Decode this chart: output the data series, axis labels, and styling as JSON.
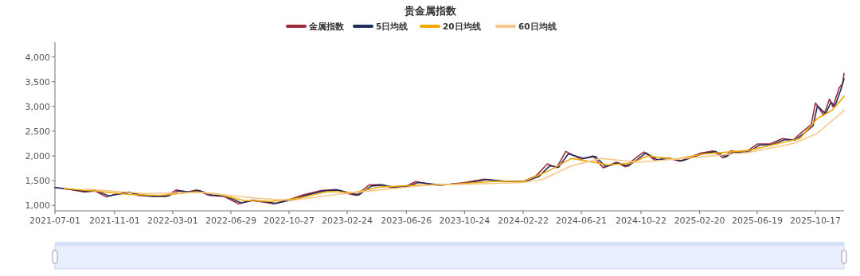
{
  "chart_data": {
    "type": "line",
    "title": "贵金属指数",
    "xlim": [
      "2021-07-01",
      "2025-12-15"
    ],
    "xticks": [
      "2021-07-01",
      "2021-11-01",
      "2022-03-01",
      "2022-06-29",
      "2022-10-27",
      "2023-02-24",
      "2023-06-26",
      "2023-10-24",
      "2024-02-22",
      "2024-06-21",
      "2024-10-22",
      "2025-02-20",
      "2025-06-19",
      "2025-10-17"
    ],
    "ylim": [
      890,
      4300
    ],
    "yticks": [
      {
        "value": 1000,
        "label": "1,000"
      },
      {
        "value": 1500,
        "label": "1,500"
      },
      {
        "value": 2000,
        "label": "2,000"
      },
      {
        "value": 2500,
        "label": "2,500"
      },
      {
        "value": 3000,
        "label": "3,000"
      },
      {
        "value": 3500,
        "label": "3,500"
      },
      {
        "value": 4000,
        "label": "4,000"
      }
    ],
    "grid": false,
    "legend": "top",
    "marker": "none",
    "line_style": "solid",
    "series": [
      {
        "name": "金属指数",
        "color": "#a0293a",
        "x": [
          "2021-07-01",
          "2021-08-01",
          "2021-09-01",
          "2021-09-20",
          "2021-10-15",
          "2021-11-01",
          "2021-12-01",
          "2021-12-20",
          "2022-01-20",
          "2022-02-15",
          "2022-03-08",
          "2022-04-01",
          "2022-04-20",
          "2022-05-15",
          "2022-06-15",
          "2022-07-15",
          "2022-08-10",
          "2022-09-01",
          "2022-09-25",
          "2022-11-01",
          "2022-11-25",
          "2023-01-01",
          "2023-02-01",
          "2023-02-24",
          "2023-03-15",
          "2023-04-10",
          "2023-05-05",
          "2023-05-25",
          "2023-06-26",
          "2023-07-15",
          "2023-09-01",
          "2023-10-24",
          "2023-12-04",
          "2024-01-10",
          "2024-02-22",
          "2024-03-20",
          "2024-04-12",
          "2024-05-01",
          "2024-05-20",
          "2024-06-21",
          "2024-07-15",
          "2024-08-05",
          "2024-09-01",
          "2024-09-20",
          "2024-10-10",
          "2024-10-28",
          "2024-11-20",
          "2024-12-15",
          "2025-01-10",
          "2025-02-20",
          "2025-03-20",
          "2025-04-10",
          "2025-04-25",
          "2025-05-25",
          "2025-06-19",
          "2025-07-15",
          "2025-08-10",
          "2025-09-01",
          "2025-09-20",
          "2025-10-08",
          "2025-10-17",
          "2025-11-03",
          "2025-11-15",
          "2025-11-22",
          "2025-12-05",
          "2025-12-12",
          "2025-12-15"
        ],
        "values": [
          1360,
          1320,
          1270,
          1300,
          1170,
          1220,
          1270,
          1200,
          1180,
          1180,
          1310,
          1270,
          1310,
          1200,
          1180,
          1030,
          1100,
          1070,
          1030,
          1130,
          1210,
          1300,
          1320,
          1240,
          1200,
          1410,
          1420,
          1360,
          1390,
          1480,
          1400,
          1460,
          1530,
          1490,
          1480,
          1600,
          1840,
          1760,
          2090,
          1930,
          2000,
          1760,
          1870,
          1780,
          1950,
          2080,
          1910,
          1960,
          1890,
          2050,
          2100,
          1960,
          2100,
          2070,
          2240,
          2240,
          2350,
          2320,
          2490,
          2630,
          3070,
          2820,
          3150,
          2990,
          3380,
          3460,
          3670
        ]
      },
      {
        "name": "5日均线",
        "color": "#1f2d5c",
        "x": [
          "2021-07-01",
          "2021-08-05",
          "2021-09-05",
          "2021-09-25",
          "2021-10-20",
          "2021-11-05",
          "2021-12-05",
          "2021-12-25",
          "2022-01-25",
          "2022-02-20",
          "2022-03-12",
          "2022-04-05",
          "2022-04-25",
          "2022-05-20",
          "2022-06-20",
          "2022-07-20",
          "2022-08-15",
          "2022-09-05",
          "2022-09-30",
          "2022-11-05",
          "2022-11-30",
          "2023-01-05",
          "2023-02-05",
          "2023-03-01",
          "2023-03-20",
          "2023-04-15",
          "2023-05-10",
          "2023-05-30",
          "2023-07-01",
          "2023-07-20",
          "2023-09-05",
          "2023-10-28",
          "2023-12-08",
          "2024-01-15",
          "2024-02-26",
          "2024-03-25",
          "2024-04-17",
          "2024-05-05",
          "2024-05-25",
          "2024-06-25",
          "2024-07-20",
          "2024-08-10",
          "2024-09-05",
          "2024-09-25",
          "2024-10-15",
          "2024-11-01",
          "2024-11-25",
          "2024-12-20",
          "2025-01-15",
          "2025-02-25",
          "2025-03-25",
          "2025-04-15",
          "2025-04-30",
          "2025-05-30",
          "2025-06-24",
          "2025-07-20",
          "2025-08-15",
          "2025-09-05",
          "2025-09-25",
          "2025-10-12",
          "2025-10-21",
          "2025-11-07",
          "2025-11-18",
          "2025-11-26",
          "2025-12-08",
          "2025-12-15"
        ],
        "values": [
          1360,
          1320,
          1280,
          1290,
          1190,
          1220,
          1260,
          1210,
          1180,
          1190,
          1290,
          1270,
          1300,
          1210,
          1180,
          1050,
          1100,
          1080,
          1040,
          1120,
          1200,
          1290,
          1310,
          1250,
          1210,
          1390,
          1410,
          1370,
          1390,
          1460,
          1410,
          1450,
          1520,
          1490,
          1480,
          1580,
          1800,
          1770,
          2040,
          1950,
          1990,
          1780,
          1860,
          1790,
          1930,
          2060,
          1920,
          1950,
          1900,
          2040,
          2090,
          1980,
          2080,
          2070,
          2220,
          2230,
          2330,
          2320,
          2470,
          2610,
          3010,
          2850,
          3090,
          3000,
          3330,
          3560
        ]
      },
      {
        "name": "20日均线",
        "color": "#f0a800",
        "x": [
          "2021-07-20",
          "2021-10-01",
          "2021-12-01",
          "2022-02-01",
          "2022-04-15",
          "2022-06-01",
          "2022-07-25",
          "2022-09-20",
          "2022-11-20",
          "2023-01-15",
          "2023-03-10",
          "2023-05-01",
          "2023-07-01",
          "2023-10-01",
          "2024-01-01",
          "2024-02-22",
          "2024-04-15",
          "2024-06-01",
          "2024-08-15",
          "2024-10-01",
          "2024-11-05",
          "2025-01-01",
          "2025-03-01",
          "2025-06-01",
          "2025-08-01",
          "2025-09-15",
          "2025-10-20",
          "2025-11-20",
          "2025-12-15"
        ],
        "values": [
          1340,
          1280,
          1220,
          1200,
          1270,
          1230,
          1100,
          1080,
          1150,
          1280,
          1260,
          1370,
          1400,
          1430,
          1490,
          1480,
          1700,
          1950,
          1820,
          1850,
          2000,
          1930,
          2040,
          2110,
          2250,
          2350,
          2750,
          2920,
          3200
        ]
      },
      {
        "name": "60日均线",
        "color": "#f5c98a",
        "x": [
          "2021-09-01",
          "2022-01-01",
          "2022-05-01",
          "2022-08-15",
          "2022-11-01",
          "2023-02-01",
          "2023-05-01",
          "2023-08-01",
          "2024-02-22",
          "2024-04-01",
          "2024-06-01",
          "2024-08-01",
          "2024-10-15",
          "2025-02-01",
          "2025-06-01",
          "2025-09-01",
          "2025-10-20",
          "2025-12-15"
        ],
        "values": [
          1330,
          1240,
          1260,
          1150,
          1100,
          1220,
          1310,
          1400,
          1460,
          1520,
          1800,
          1950,
          1870,
          1960,
          2070,
          2250,
          2450,
          2920
        ]
      }
    ]
  }
}
